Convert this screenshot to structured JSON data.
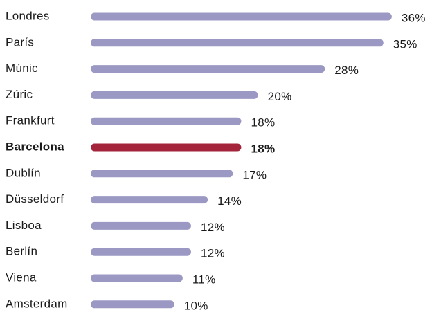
{
  "chart_data": {
    "type": "bar",
    "orientation": "horizontal",
    "categories": [
      "Londres",
      "París",
      "Múnic",
      "Zúric",
      "Frankfurt",
      "Barcelona",
      "Dublín",
      "Düsseldorf",
      "Lisboa",
      "Berlín",
      "Viena",
      "Amsterdam"
    ],
    "values": [
      36,
      35,
      28,
      20,
      18,
      18,
      17,
      14,
      12,
      12,
      11,
      10
    ],
    "value_labels": [
      "36%",
      "35%",
      "28%",
      "20%",
      "18%",
      "18%",
      "17%",
      "14%",
      "12%",
      "12%",
      "11%",
      "10%"
    ],
    "color": "#9b99c4",
    "highlight": "Barcelona",
    "highlight_color": "#a4243b"
  }
}
